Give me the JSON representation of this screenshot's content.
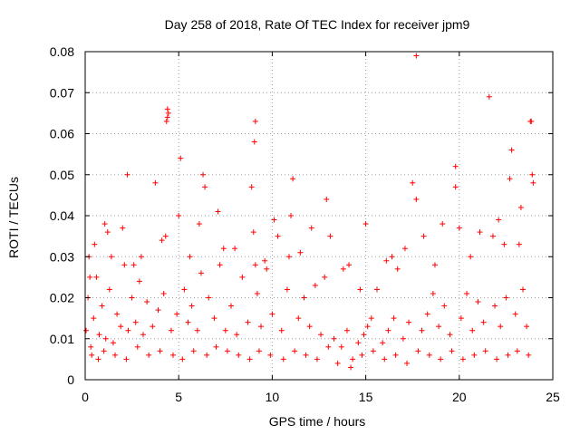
{
  "chart_data": {
    "type": "scatter",
    "title": "Day 258 of 2018, Rate Of TEC Index for receiver jpm9",
    "xlabel": "GPS time / hours",
    "ylabel": "ROTI / TECUs",
    "xlim": [
      0,
      25
    ],
    "ylim": [
      0,
      0.08
    ],
    "xticks": [
      0,
      5,
      10,
      15,
      20,
      25
    ],
    "xtick_labels": [
      "0",
      "5",
      "10",
      "15",
      "20",
      "25"
    ],
    "yticks": [
      0,
      0.01,
      0.02,
      0.03,
      0.04,
      0.05,
      0.06,
      0.07,
      0.08
    ],
    "ytick_labels": [
      "0",
      "0.01",
      "0.02",
      "0.03",
      "0.04",
      "0.05",
      "0.06",
      "0.07",
      "0.08"
    ],
    "grid": true,
    "marker": "+",
    "series_color": "#ff0000",
    "series": [
      {
        "name": "ROTI",
        "x": [
          0.05,
          0.15,
          0.2,
          0.3,
          0.45,
          0.6,
          0.75,
          0.9,
          1.1,
          1.3,
          1.5,
          1.7,
          1.9,
          2.1,
          2.3,
          2.5,
          2.7,
          2.9,
          3.1,
          3.3,
          3.6,
          3.9,
          4.2,
          4.35,
          4.4,
          4.45,
          4.6,
          4.9,
          5.1,
          5.3,
          5.5,
          5.7,
          6.0,
          6.3,
          6.4,
          6.6,
          6.9,
          7.2,
          7.5,
          7.8,
          8.1,
          8.4,
          8.7,
          8.9,
          9.05,
          9.1,
          9.2,
          9.4,
          9.7,
          10.0,
          10.3,
          10.5,
          10.8,
          11.1,
          11.4,
          11.7,
          12.0,
          12.3,
          12.6,
          12.9,
          13.3,
          13.7,
          14.0,
          14.3,
          14.6,
          14.9,
          15.1,
          15.3,
          15.6,
          15.9,
          16.2,
          16.5,
          16.7,
          17.0,
          17.3,
          17.5,
          17.7,
          18.0,
          18.3,
          18.6,
          18.9,
          19.2,
          19.5,
          19.8,
          20.1,
          20.4,
          20.7,
          21.0,
          21.3,
          21.6,
          21.9,
          22.2,
          22.5,
          22.8,
          23.0,
          23.2,
          23.4,
          23.6,
          23.8,
          23.9,
          0.35,
          0.7,
          1.0,
          1.6,
          2.2,
          2.8,
          3.4,
          4.0,
          4.7,
          5.2,
          5.8,
          6.5,
          7.0,
          7.6,
          8.2,
          8.8,
          9.3,
          9.9,
          10.6,
          11.2,
          11.8,
          12.4,
          13.0,
          13.5,
          14.2,
          14.8,
          15.4,
          16.0,
          16.6,
          17.2,
          17.8,
          18.4,
          19.0,
          19.6,
          20.2,
          20.8,
          21.4,
          22.0,
          22.6,
          23.1,
          23.7,
          0.5,
          1.2,
          2.0,
          3.0,
          4.1,
          5.0,
          6.1,
          7.1,
          8.0,
          9.0,
          10.1,
          11.0,
          12.1,
          13.1,
          14.1,
          15.0,
          16.1,
          17.1,
          18.1,
          19.1,
          20.0,
          21.1,
          22.1,
          23.3,
          1.05,
          2.25,
          3.75,
          4.4,
          6.2,
          9.1,
          10.9,
          12.8,
          14.7,
          17.7,
          19.8,
          21.8,
          22.7,
          23.85,
          23.95,
          0.25,
          1.4,
          2.6,
          4.3,
          5.6,
          7.4,
          9.6,
          11.5,
          13.8,
          16.4,
          18.7,
          20.6,
          22.4
        ],
        "y": [
          0.012,
          0.02,
          0.03,
          0.008,
          0.015,
          0.025,
          0.011,
          0.018,
          0.01,
          0.022,
          0.009,
          0.016,
          0.013,
          0.028,
          0.012,
          0.02,
          0.014,
          0.024,
          0.011,
          0.019,
          0.013,
          0.017,
          0.021,
          0.063,
          0.066,
          0.065,
          0.012,
          0.016,
          0.054,
          0.022,
          0.014,
          0.018,
          0.012,
          0.05,
          0.047,
          0.02,
          0.015,
          0.028,
          0.012,
          0.018,
          0.011,
          0.025,
          0.014,
          0.047,
          0.058,
          0.063,
          0.021,
          0.013,
          0.027,
          0.016,
          0.035,
          0.012,
          0.022,
          0.049,
          0.015,
          0.02,
          0.013,
          0.023,
          0.011,
          0.044,
          0.01,
          0.008,
          0.012,
          0.005,
          0.009,
          0.011,
          0.013,
          0.015,
          0.022,
          0.009,
          0.012,
          0.015,
          0.027,
          0.01,
          0.014,
          0.048,
          0.079,
          0.012,
          0.016,
          0.021,
          0.013,
          0.018,
          0.011,
          0.052,
          0.015,
          0.021,
          0.012,
          0.019,
          0.014,
          0.069,
          0.018,
          0.013,
          0.02,
          0.056,
          0.016,
          0.033,
          0.022,
          0.013,
          0.063,
          0.05,
          0.006,
          0.005,
          0.007,
          0.006,
          0.005,
          0.008,
          0.006,
          0.007,
          0.006,
          0.005,
          0.007,
          0.006,
          0.008,
          0.007,
          0.006,
          0.005,
          0.007,
          0.006,
          0.005,
          0.007,
          0.006,
          0.005,
          0.008,
          0.004,
          0.003,
          0.006,
          0.007,
          0.005,
          0.006,
          0.004,
          0.007,
          0.006,
          0.005,
          0.007,
          0.005,
          0.006,
          0.007,
          0.005,
          0.006,
          0.007,
          0.006,
          0.033,
          0.036,
          0.037,
          0.03,
          0.034,
          0.04,
          0.038,
          0.041,
          0.032,
          0.036,
          0.039,
          0.04,
          0.037,
          0.035,
          0.028,
          0.038,
          0.029,
          0.032,
          0.035,
          0.038,
          0.037,
          0.036,
          0.039,
          0.042,
          0.038,
          0.05,
          0.048,
          0.064,
          0.026,
          0.028,
          0.03,
          0.025,
          0.022,
          0.044,
          0.047,
          0.035,
          0.049,
          0.063,
          0.048,
          0.025,
          0.03,
          0.028,
          0.035,
          0.03,
          0.032,
          0.029,
          0.031,
          0.027,
          0.03,
          0.028,
          0.03,
          0.033
        ]
      }
    ]
  }
}
